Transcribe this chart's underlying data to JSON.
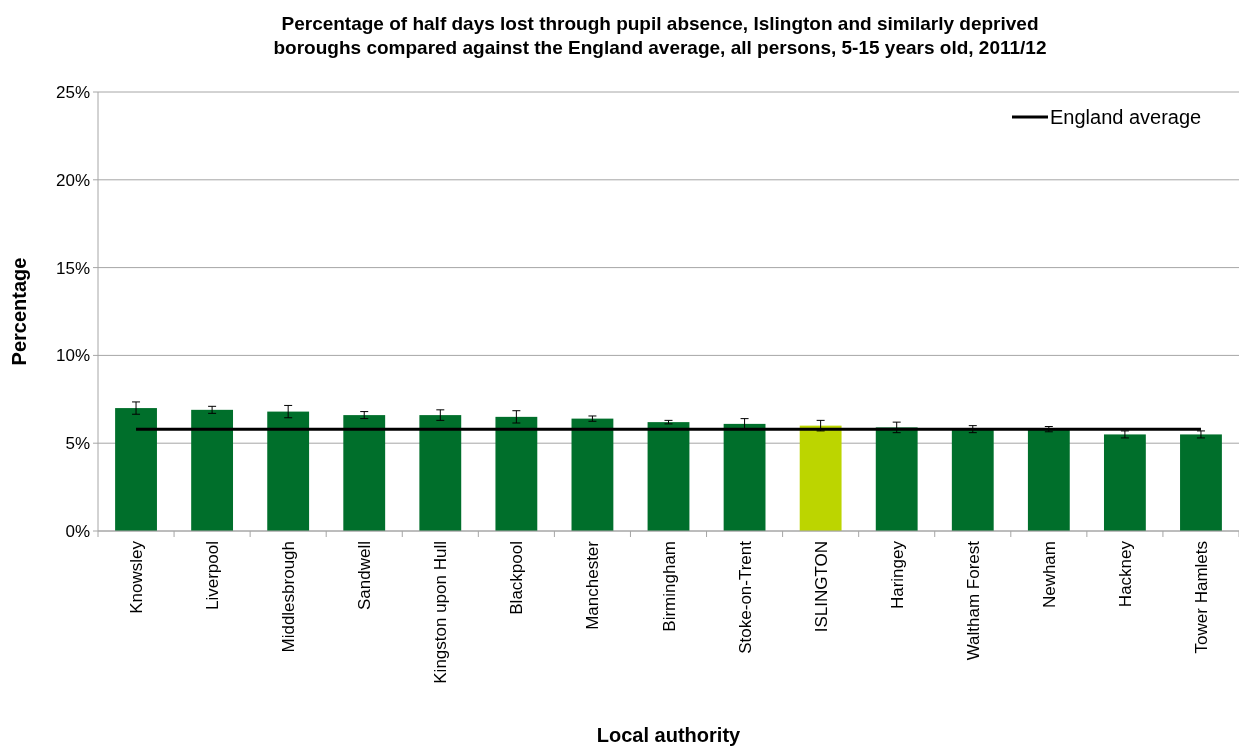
{
  "chart_data": {
    "type": "bar",
    "title": "Percentage of half days lost through pupil absence, Islington and similarly deprived boroughs compared against the England average, all persons, 5-15 years old, 2011/12",
    "xlabel": "Local authority",
    "ylabel": "Percentage",
    "categories": [
      "Knowsley",
      "Liverpool",
      "Middlesbrough",
      "Sandwell",
      "Kingston upon Hull",
      "Blackpool",
      "Manchester",
      "Birmingham",
      "Stoke-on-Trent",
      "ISLINGTON",
      "Haringey",
      "Waltham Forest",
      "Newham",
      "Hackney",
      "Tower Hamlets"
    ],
    "values": [
      7.0,
      6.9,
      6.8,
      6.6,
      6.6,
      6.5,
      6.4,
      6.2,
      6.1,
      6.0,
      5.9,
      5.8,
      5.8,
      5.5,
      5.5
    ],
    "errors": [
      0.35,
      0.2,
      0.35,
      0.2,
      0.3,
      0.35,
      0.15,
      0.1,
      0.3,
      0.3,
      0.3,
      0.2,
      0.15,
      0.2,
      0.2
    ],
    "colors": [
      "#006f2b",
      "#006f2b",
      "#006f2b",
      "#006f2b",
      "#006f2b",
      "#006f2b",
      "#006f2b",
      "#006f2b",
      "#006f2b",
      "#bcd500",
      "#006f2b",
      "#006f2b",
      "#006f2b",
      "#006f2b",
      "#006f2b"
    ],
    "ylim": [
      0,
      25
    ],
    "yticks": [
      {
        "value": 0,
        "label": "0%"
      },
      {
        "value": 5,
        "label": "5%"
      },
      {
        "value": 10,
        "label": "10%"
      },
      {
        "value": 15,
        "label": "15%"
      },
      {
        "value": 20,
        "label": "20%"
      },
      {
        "value": 25,
        "label": "25%"
      }
    ],
    "grid": "y",
    "legend": "top right",
    "ref_lines": [
      {
        "axis": "y",
        "value": 5.8,
        "label": "England average",
        "color": "#000000"
      }
    ]
  }
}
